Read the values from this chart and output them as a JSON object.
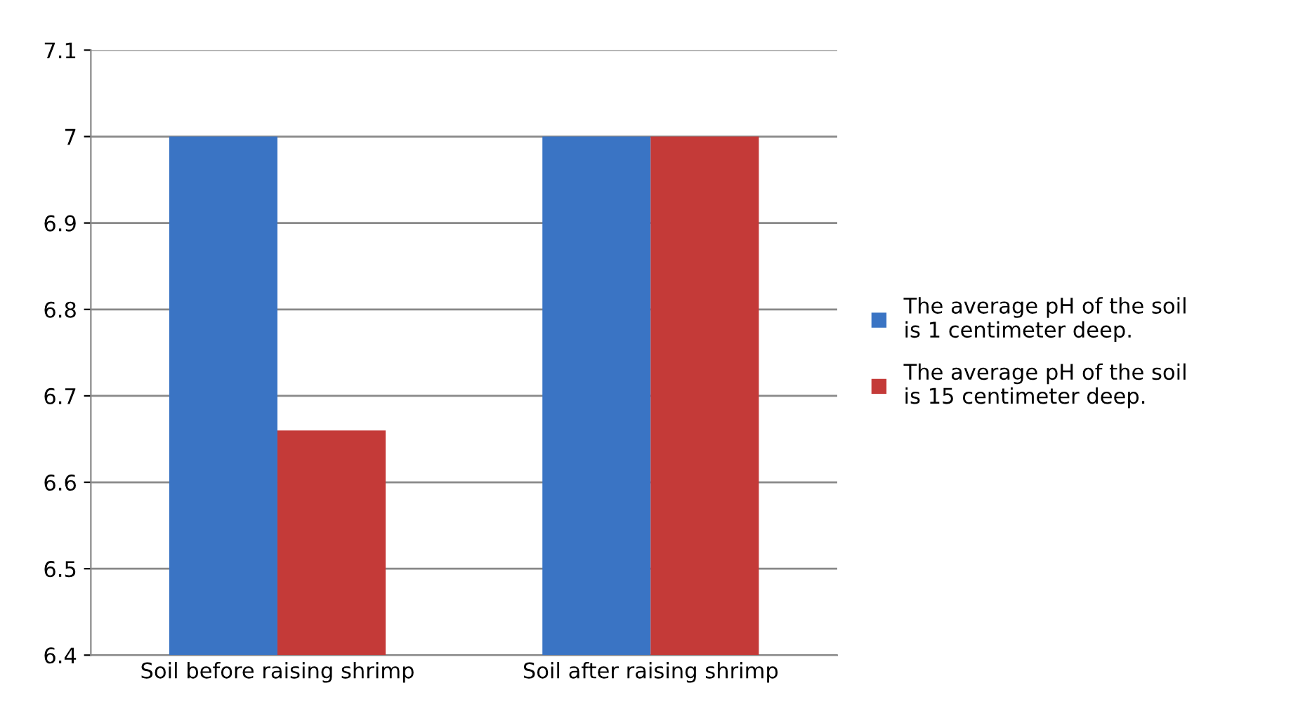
{
  "chart_data": {
    "type": "bar",
    "categories": [
      "Soil before raising shrimp",
      "Soil after raising shrimp"
    ],
    "series": [
      {
        "name": "The average pH of the soil\nis 1 centimeter deep.",
        "color": "#3a74c4",
        "values": [
          7,
          7
        ]
      },
      {
        "name": "The average pH of the soil\nis 15 centimeter deep.",
        "color": "#c43a38",
        "values": [
          6.66,
          7
        ]
      }
    ],
    "ylim": [
      6.4,
      7.1
    ],
    "yticks": [
      6.4,
      6.5,
      6.6,
      6.7,
      6.8,
      6.9,
      7,
      7.1
    ],
    "grid": "y",
    "legend": "right"
  }
}
